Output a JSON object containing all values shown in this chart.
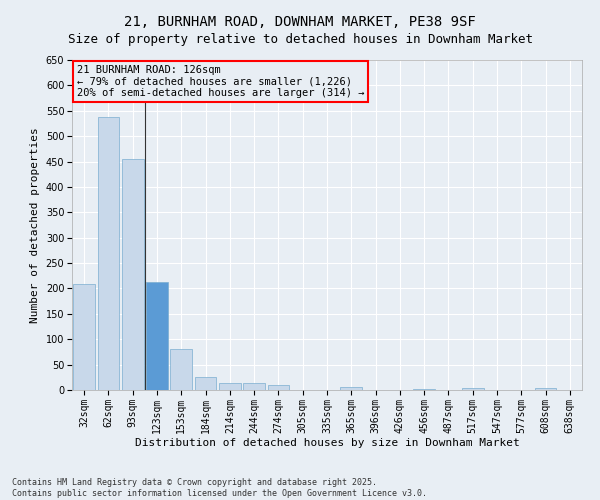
{
  "title1": "21, BURNHAM ROAD, DOWNHAM MARKET, PE38 9SF",
  "title2": "Size of property relative to detached houses in Downham Market",
  "xlabel": "Distribution of detached houses by size in Downham Market",
  "ylabel": "Number of detached properties",
  "footer1": "Contains HM Land Registry data © Crown copyright and database right 2025.",
  "footer2": "Contains public sector information licensed under the Open Government Licence v3.0.",
  "annotation_title": "21 BURNHAM ROAD: 126sqm",
  "annotation_line2": "← 79% of detached houses are smaller (1,226)",
  "annotation_line3": "20% of semi-detached houses are larger (314) →",
  "subject_bar_index": 3,
  "vline_position": 2.5,
  "bar_color_normal": "#c8d8ea",
  "bar_color_subject": "#c8d8ea",
  "bar_color_highlight": "#5b9bd5",
  "bar_edge_color": "#7aaed0",
  "categories": [
    "32sqm",
    "62sqm",
    "93sqm",
    "123sqm",
    "153sqm",
    "184sqm",
    "214sqm",
    "244sqm",
    "274sqm",
    "305sqm",
    "335sqm",
    "365sqm",
    "396sqm",
    "426sqm",
    "456sqm",
    "487sqm",
    "517sqm",
    "547sqm",
    "577sqm",
    "608sqm",
    "638sqm"
  ],
  "values": [
    208,
    537,
    455,
    213,
    80,
    26,
    14,
    13,
    10,
    0,
    0,
    5,
    0,
    0,
    2,
    0,
    4,
    0,
    0,
    3,
    0
  ],
  "ylim": [
    0,
    650
  ],
  "yticks": [
    0,
    50,
    100,
    150,
    200,
    250,
    300,
    350,
    400,
    450,
    500,
    550,
    600,
    650
  ],
  "background_color": "#e8eef4",
  "grid_color": "#ffffff",
  "title_fontsize": 10,
  "subtitle_fontsize": 9,
  "axis_label_fontsize": 8,
  "tick_fontsize": 7,
  "annotation_fontsize": 7.5,
  "footer_fontsize": 6
}
